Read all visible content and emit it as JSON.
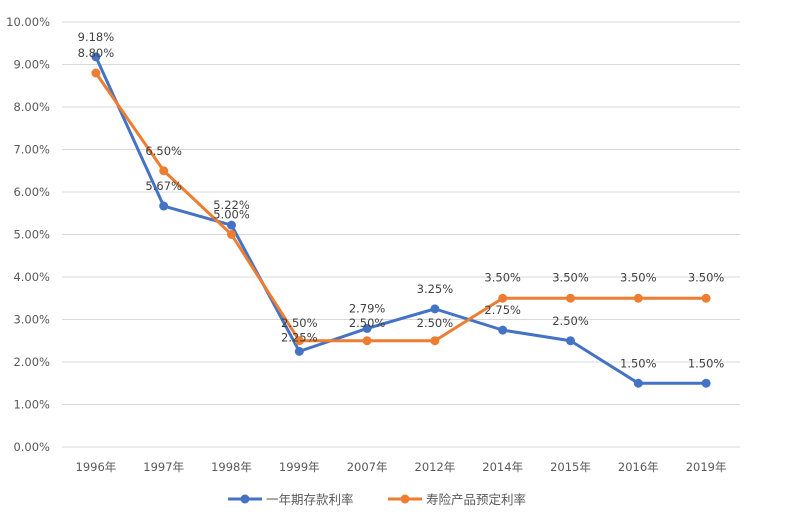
{
  "chart_data": {
    "type": "line",
    "categories": [
      "1996年",
      "1997年",
      "1998年",
      "1999年",
      "2007年",
      "2012年",
      "2014年",
      "2015年",
      "2016年",
      "2019年"
    ],
    "ylim": [
      0,
      10
    ],
    "yticks": [
      "0.00%",
      "1.00%",
      "2.00%",
      "3.00%",
      "4.00%",
      "5.00%",
      "6.00%",
      "7.00%",
      "8.00%",
      "9.00%",
      "10.00%"
    ],
    "grid": true,
    "legend_position": "bottom",
    "series": [
      {
        "name": "一年期存款利率",
        "color": "#4472C4",
        "values": [
          9.18,
          5.67,
          5.22,
          2.25,
          2.79,
          3.25,
          2.75,
          2.5,
          1.5,
          1.5
        ],
        "labels": [
          "9.18%",
          "5.67%",
          "5.22%",
          "2.25%",
          "2.79%",
          "3.25%",
          "2.75%",
          "2.50%",
          "1.50%",
          "1.50%"
        ]
      },
      {
        "name": "寿险产品预定利率",
        "color": "#ED7D31",
        "values": [
          8.8,
          6.5,
          5.0,
          2.5,
          2.5,
          2.5,
          3.5,
          3.5,
          3.5,
          3.5
        ],
        "labels": [
          "8.80%",
          "6.50%",
          "5.00%",
          "2.50%",
          "2.50%",
          "2.50%",
          "3.50%",
          "3.50%",
          "3.50%",
          "3.50%"
        ]
      }
    ]
  }
}
